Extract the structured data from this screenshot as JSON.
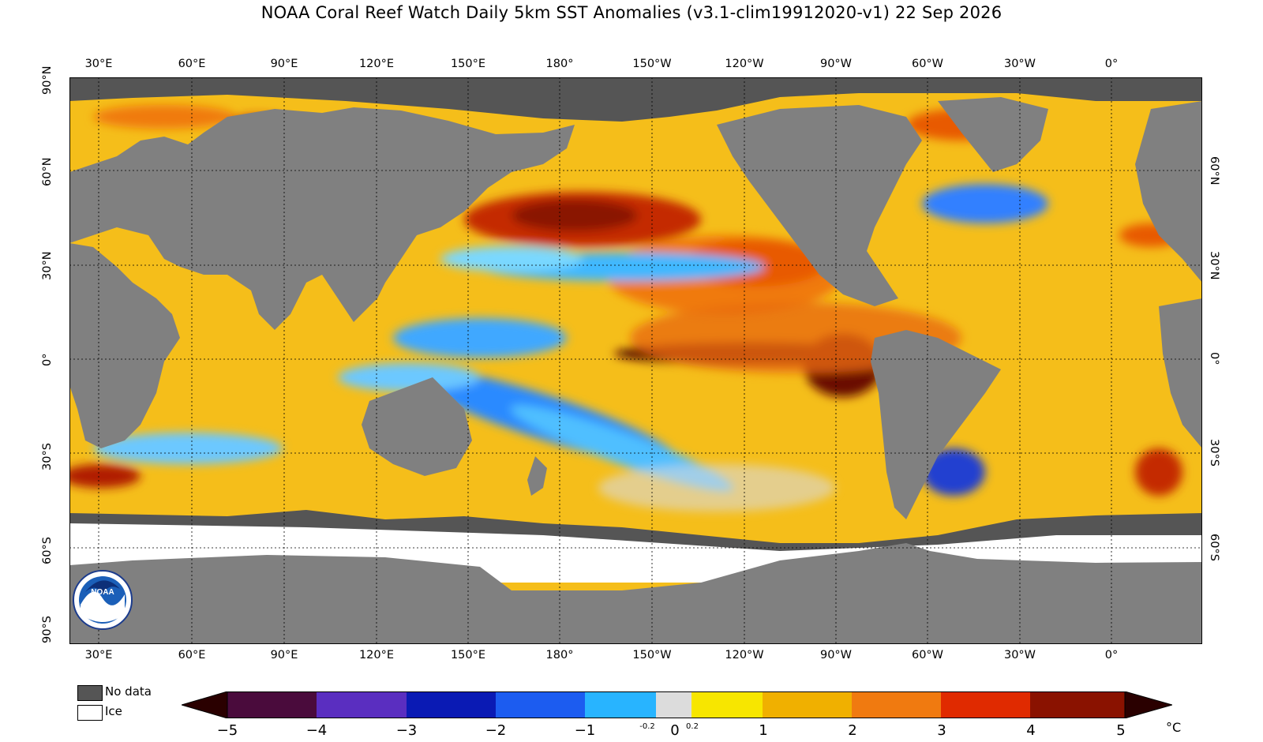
{
  "title": "NOAA Coral Reef Watch Daily 5km SST Anomalies  (v3.1-clim19912020-v1)   22 Sep 2026",
  "map": {
    "type": "global SST anomaly map",
    "longitude_ticks": [
      "30°E",
      "60°E",
      "90°E",
      "120°E",
      "150°E",
      "180°",
      "150°W",
      "120°W",
      "90°W",
      "60°W",
      "30°W",
      "0°"
    ],
    "latitude_ticks_left": [
      "90°N",
      "60°N",
      "30°N",
      "0°",
      "30°S",
      "60°S",
      "90°S"
    ],
    "latitude_ticks_right": [
      "60°N",
      "30°N",
      "0°",
      "30°S",
      "60°S"
    ],
    "colors": {
      "land": "#808080",
      "no_data": "#555555",
      "ice": "#ffffff",
      "ocean_mid": "#f2b500"
    },
    "logo": "NOAA"
  },
  "legend": {
    "no_data_label": "No data",
    "ice_label": "Ice"
  },
  "colorbar": {
    "labels": [
      "−5",
      "−4",
      "−3",
      "−2",
      "−1",
      "0",
      "1",
      "2",
      "3",
      "4",
      "5"
    ],
    "small_labels": [
      "-0.2",
      "0.2"
    ],
    "unit": "°C",
    "range": [
      -5,
      5
    ]
  }
}
